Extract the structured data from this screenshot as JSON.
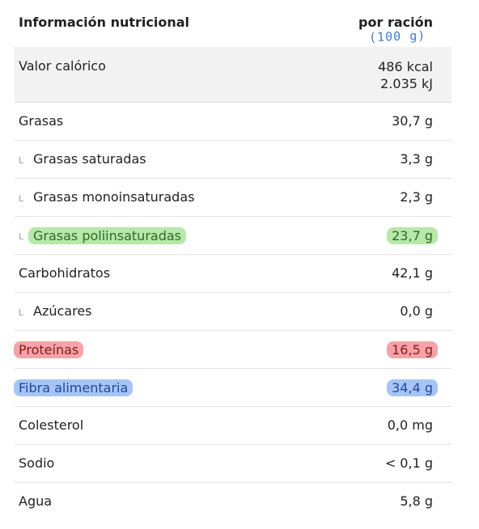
{
  "header": {
    "name_label": "Información nutricional",
    "value_label": "por ración",
    "annotation": "(100 g)"
  },
  "energy": {
    "label": "Valor calórico",
    "kcal": "486 kcal",
    "kj": "2.035 kJ"
  },
  "rows": [
    {
      "label": "Grasas",
      "value": "30,7 g"
    },
    {
      "label": "Grasas saturadas",
      "value": "3,3 g"
    },
    {
      "label": "Grasas monoinsaturadas",
      "value": "2,3 g"
    },
    {
      "label": "Grasas poliinsaturadas",
      "value": "23,7 g",
      "highlight": "#b6e8a8"
    },
    {
      "label": "Carbohidratos",
      "value": "42,1 g"
    },
    {
      "label": "Azúcares",
      "value": "0,0 g"
    },
    {
      "label": "Proteínas",
      "value": "16,5 g",
      "highlight": "#f6a2a6"
    },
    {
      "label": "Fibra alimentaria",
      "value": "34,4 g",
      "highlight": "#a6c4f6"
    },
    {
      "label": "Colesterol",
      "value": "0,0 mg"
    },
    {
      "label": "Sodio",
      "value": "< 0,1 g"
    },
    {
      "label": "Agua",
      "value": "5,8 g"
    }
  ]
}
